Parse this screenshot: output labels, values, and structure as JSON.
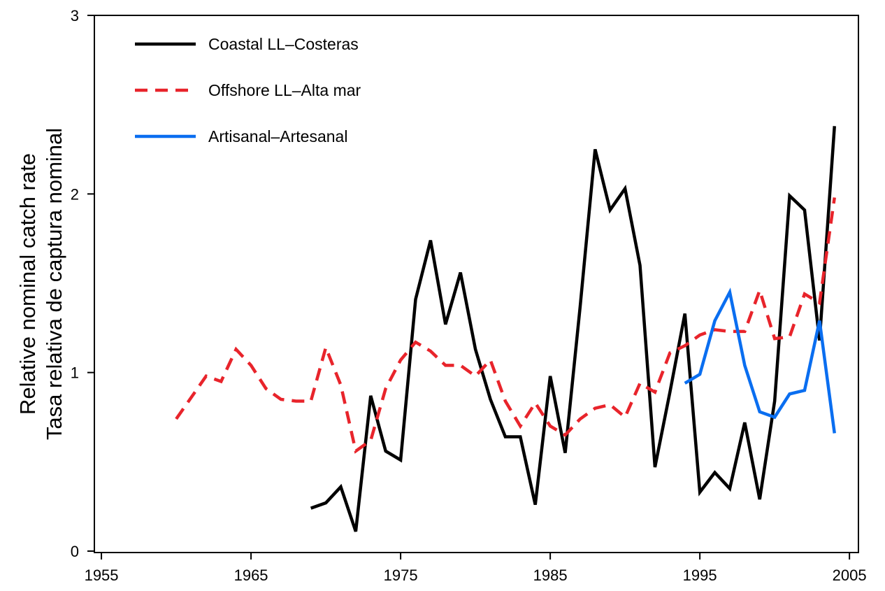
{
  "chart_data": {
    "type": "line",
    "y_label": [
      "Relative nominal catch rate",
      "Tasa relativa de captura nominal"
    ],
    "x": [
      1960,
      1961,
      1962,
      1963,
      1964,
      1965,
      1966,
      1967,
      1968,
      1969,
      1970,
      1971,
      1972,
      1973,
      1974,
      1975,
      1976,
      1977,
      1978,
      1979,
      1980,
      1981,
      1982,
      1983,
      1984,
      1985,
      1986,
      1987,
      1988,
      1989,
      1990,
      1991,
      1992,
      1993,
      1994,
      1995,
      1996,
      1997,
      1998,
      1999,
      2000,
      2001,
      2002,
      2003,
      2004
    ],
    "series": [
      {
        "name": "Coastal LL–Costeras",
        "color": "#000000",
        "dash": false,
        "values": [
          null,
          null,
          null,
          null,
          null,
          null,
          null,
          null,
          null,
          0.24,
          0.27,
          0.36,
          0.11,
          0.87,
          0.56,
          0.51,
          1.41,
          1.74,
          1.27,
          1.56,
          1.13,
          0.85,
          0.64,
          0.64,
          0.26,
          0.98,
          0.55,
          1.37,
          2.25,
          1.91,
          2.03,
          1.6,
          0.47,
          0.89,
          1.33,
          0.33,
          0.44,
          0.35,
          0.72,
          0.29,
          0.84,
          1.99,
          1.91,
          1.18,
          2.38
        ]
      },
      {
        "name": "Offshore LL–Alta mar",
        "color": "#e8242b",
        "dash": true,
        "values": [
          0.74,
          0.86,
          0.98,
          0.95,
          1.13,
          1.04,
          0.91,
          0.85,
          0.84,
          0.84,
          1.14,
          0.93,
          0.56,
          0.62,
          0.91,
          1.07,
          1.17,
          1.12,
          1.04,
          1.04,
          0.98,
          1.07,
          0.84,
          0.7,
          0.83,
          0.7,
          0.65,
          0.74,
          0.8,
          0.82,
          0.75,
          0.94,
          0.89,
          1.11,
          1.15,
          1.21,
          1.24,
          1.23,
          1.23,
          1.46,
          1.19,
          1.2,
          1.44,
          1.39,
          1.98
        ]
      },
      {
        "name": "Artisanal–Artesanal",
        "color": "#0a6ef0",
        "dash": false,
        "values": [
          null,
          null,
          null,
          null,
          null,
          null,
          null,
          null,
          null,
          null,
          null,
          null,
          null,
          null,
          null,
          null,
          null,
          null,
          null,
          null,
          null,
          null,
          null,
          null,
          null,
          null,
          null,
          null,
          null,
          null,
          null,
          null,
          null,
          null,
          0.94,
          0.99,
          1.29,
          1.45,
          1.04,
          0.78,
          0.75,
          0.88,
          0.9,
          1.29,
          0.66
        ]
      }
    ],
    "xlim": [
      1954.53,
      2005.6
    ],
    "xticks": [
      1955,
      1965,
      1975,
      1985,
      1995,
      2005
    ],
    "ylim": [
      -0.008,
      3.0
    ],
    "yticks": [
      0,
      1,
      2,
      3
    ],
    "legend": "top-left"
  }
}
